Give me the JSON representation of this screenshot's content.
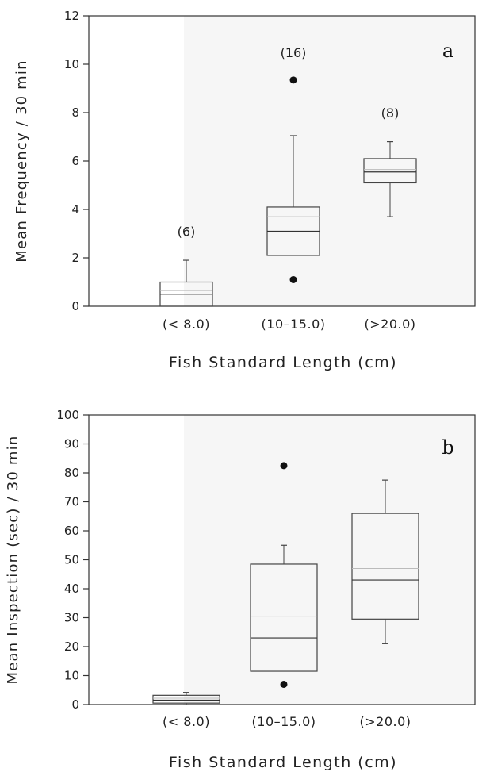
{
  "chart_data": [
    {
      "type": "box",
      "panel_label": "a",
      "ylabel": "Mean Frequency / 30 min",
      "xlabel": "Fish Standard Length (cm)",
      "ylim": [
        0,
        12
      ],
      "yticks": [
        0,
        2,
        4,
        6,
        8,
        10,
        12
      ],
      "categories": [
        "(< 8.0)",
        "(10–15.0)",
        "(>20.0)"
      ],
      "n_labels": [
        "(6)",
        "(16)",
        "(8)"
      ],
      "boxes": [
        {
          "whisker_low": 0,
          "q1": 0,
          "median": 0.5,
          "mean": 0.65,
          "q3": 1.0,
          "whisker_high": 1.9,
          "outliers": []
        },
        {
          "whisker_low": 2.1,
          "q1": 2.1,
          "median": 3.1,
          "mean": 3.7,
          "q3": 4.1,
          "whisker_high": 7.05,
          "outliers": [
            9.35,
            1.1
          ]
        },
        {
          "whisker_low": 3.7,
          "q1": 5.1,
          "median": 5.55,
          "mean": 5.65,
          "q3": 6.1,
          "whisker_high": 6.8,
          "outliers": []
        }
      ]
    },
    {
      "type": "box",
      "panel_label": "b",
      "ylabel": "Mean Inspection (sec) / 30 min",
      "xlabel": "Fish Standard Length (cm)",
      "ylim": [
        0,
        100
      ],
      "yticks": [
        0,
        10,
        20,
        30,
        40,
        50,
        60,
        70,
        80,
        90,
        100
      ],
      "categories": [
        "(< 8.0)",
        "(10–15.0)",
        "(>20.0)"
      ],
      "n_labels": [],
      "boxes": [
        {
          "whisker_low": 0,
          "q1": 0.5,
          "median": 1.5,
          "mean": 2.2,
          "q3": 3.2,
          "whisker_high": 4.2,
          "outliers": []
        },
        {
          "whisker_low": 11.5,
          "q1": 11.5,
          "median": 23,
          "mean": 30.5,
          "q3": 48.5,
          "whisker_high": 55,
          "outliers": [
            82.5,
            7
          ]
        },
        {
          "whisker_low": 21,
          "q1": 29.5,
          "median": 43,
          "mean": 47,
          "q3": 66,
          "whisker_high": 77.5,
          "outliers": []
        }
      ]
    }
  ]
}
